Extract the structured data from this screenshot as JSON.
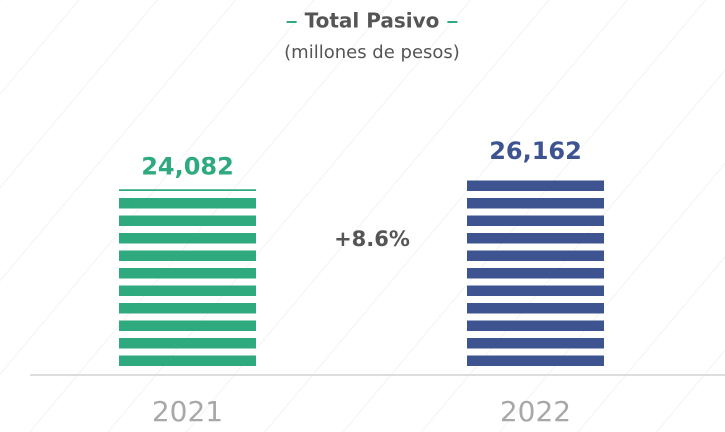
{
  "chart_data": {
    "type": "bar",
    "title": "Total Pasivo",
    "subtitle": "(millones de pesos)",
    "categories": [
      "2021",
      "2022"
    ],
    "values": [
      24082,
      26162
    ],
    "value_labels": [
      "24,082",
      "26,162"
    ],
    "colors": [
      "#2eaa7e",
      "#3d5490"
    ],
    "annotation": "+8.6%"
  }
}
